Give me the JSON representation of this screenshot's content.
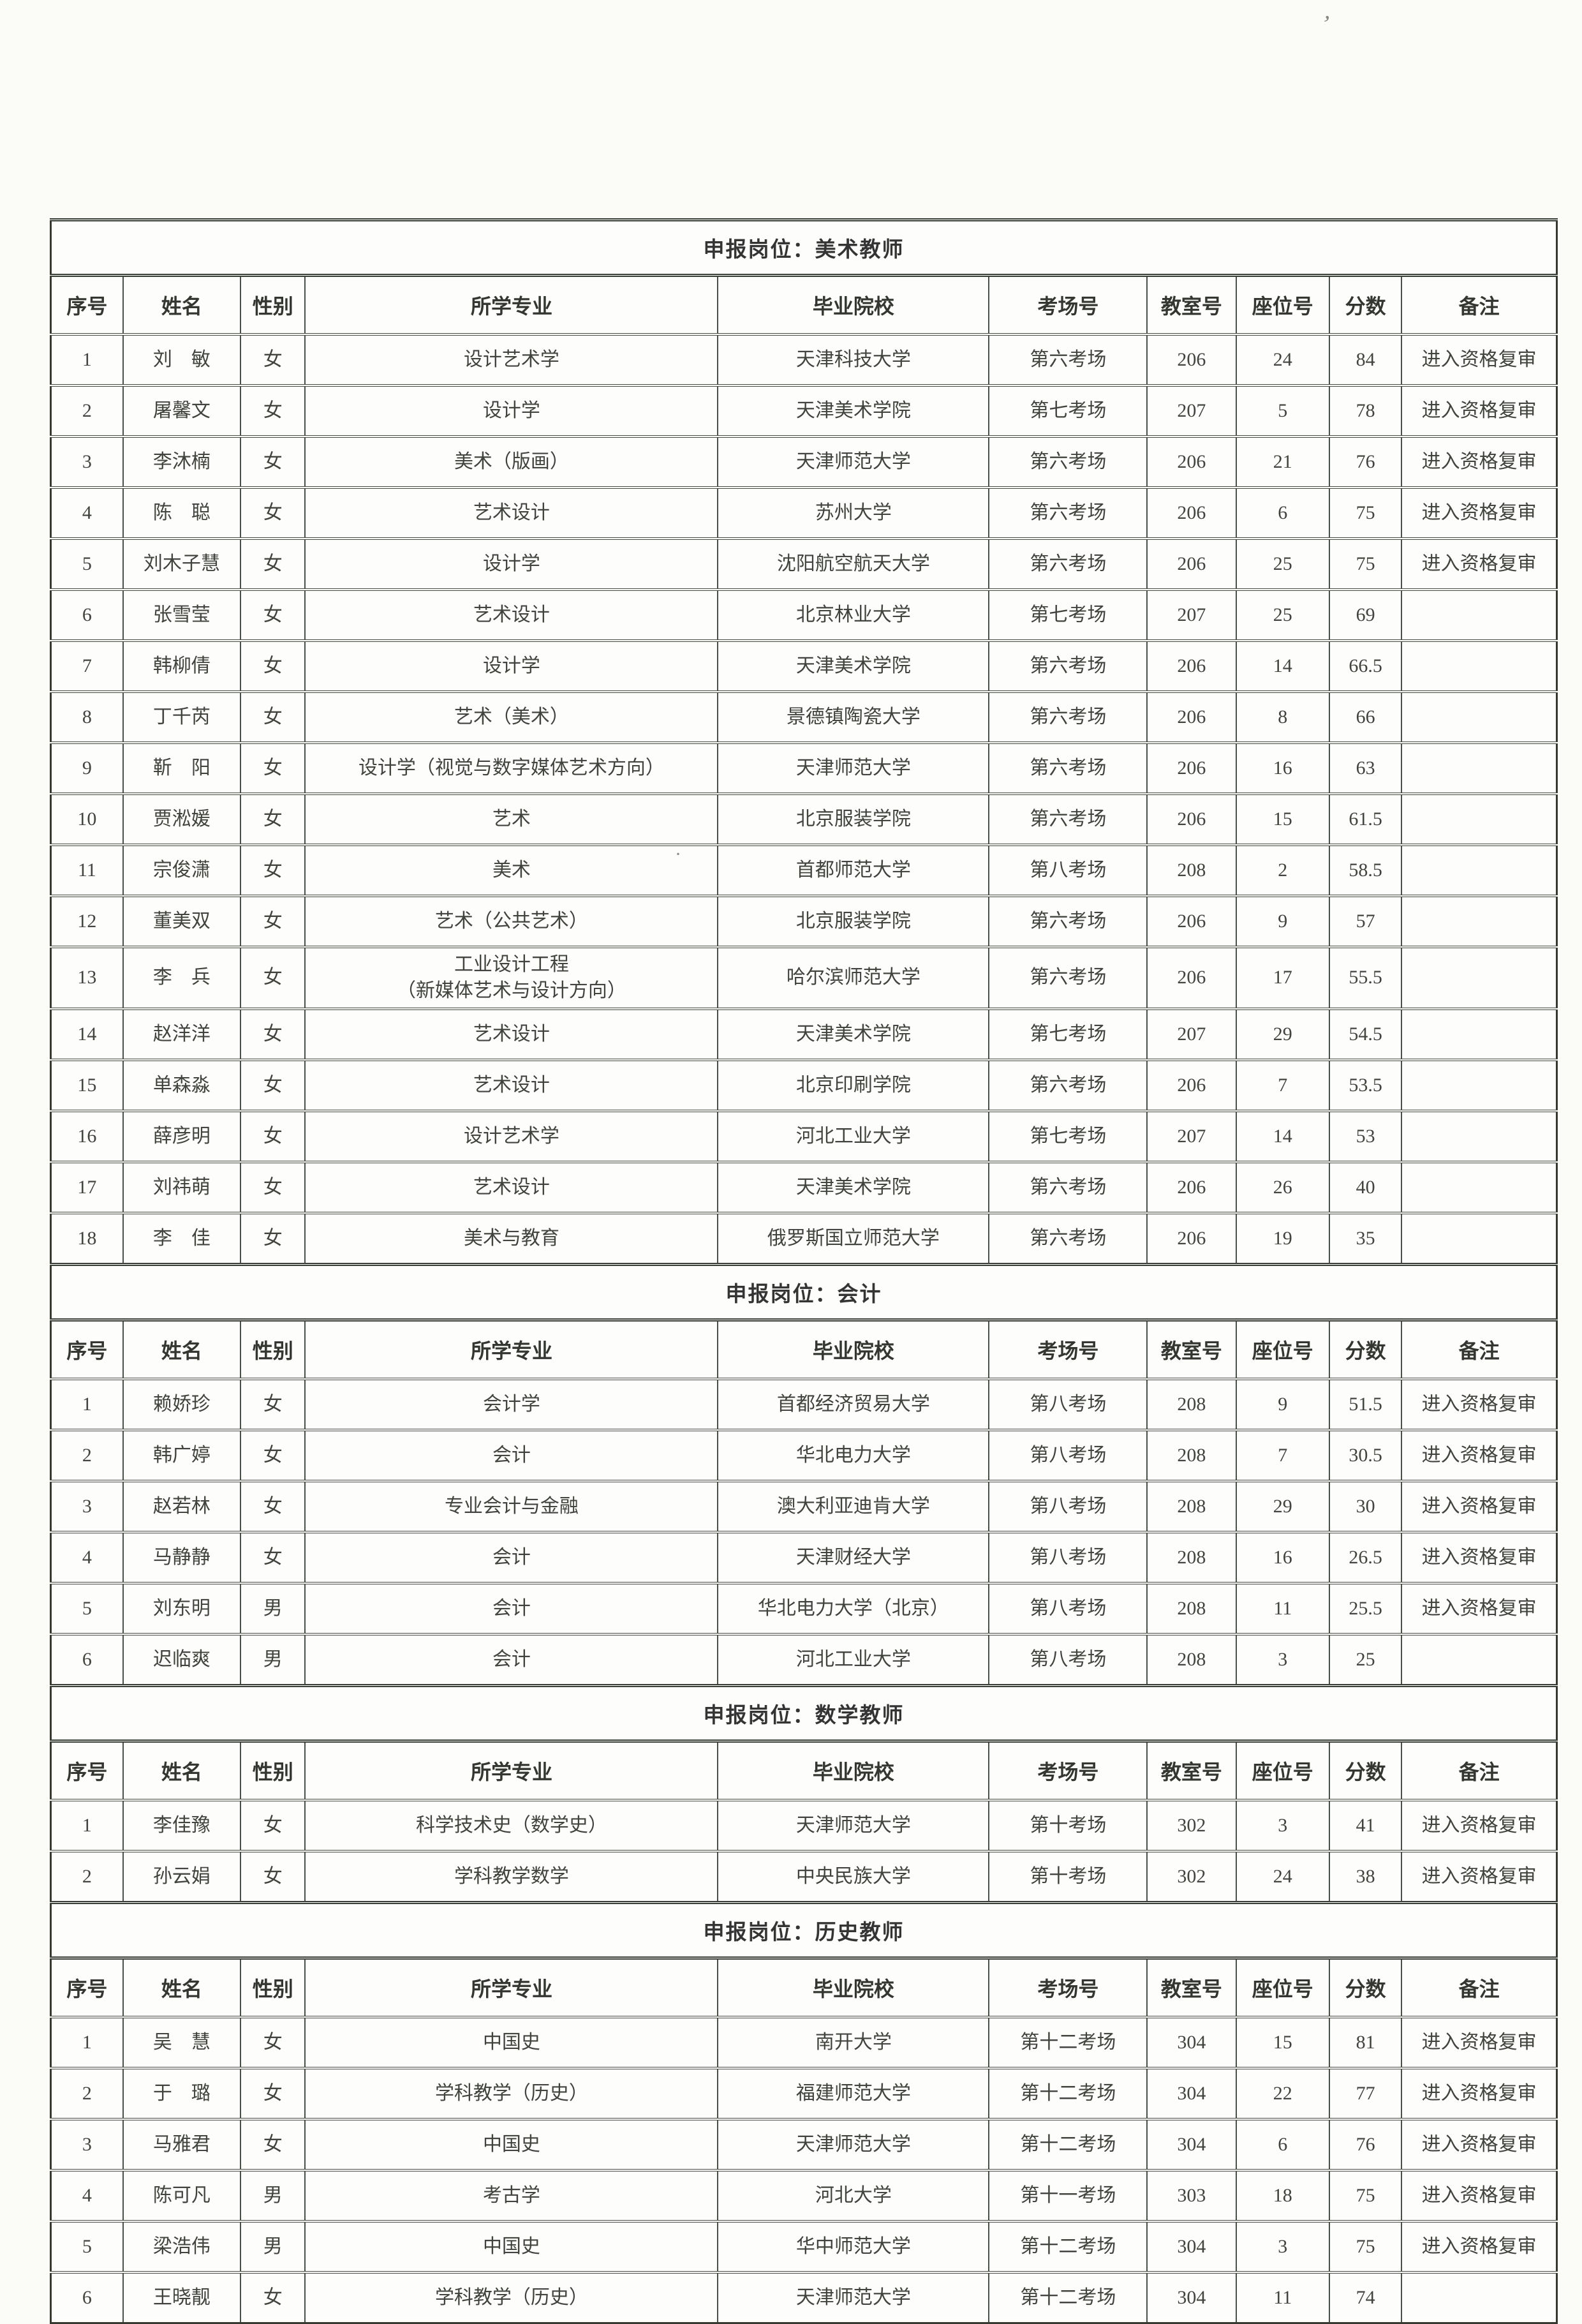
{
  "colors": {
    "paper": "#fbfbf8",
    "ink": "#3a3a3a",
    "line": "#41463f"
  },
  "scan_marks": {
    "mark1": "’",
    "mark2": "·",
    "mark3": "·"
  },
  "document": {
    "column_keys": [
      "seq",
      "name",
      "gender",
      "major",
      "school",
      "exam-room",
      "classroom",
      "seat",
      "score",
      "remark"
    ],
    "sections": [
      {
        "title": "申报岗位：美术教师",
        "headers": [
          "序号",
          "姓名",
          "性别",
          "所学专业",
          "毕业院校",
          "考场号",
          "教室号",
          "座位号",
          "分数",
          "备注"
        ],
        "rows": [
          [
            "1",
            "刘　敏",
            "女",
            "设计艺术学",
            "天津科技大学",
            "第六考场",
            "206",
            "24",
            "84",
            "进入资格复审"
          ],
          [
            "2",
            "屠馨文",
            "女",
            "设计学",
            "天津美术学院",
            "第七考场",
            "207",
            "5",
            "78",
            "进入资格复审"
          ],
          [
            "3",
            "李沐楠",
            "女",
            "美术（版画）",
            "天津师范大学",
            "第六考场",
            "206",
            "21",
            "76",
            "进入资格复审"
          ],
          [
            "4",
            "陈　聪",
            "女",
            "艺术设计",
            "苏州大学",
            "第六考场",
            "206",
            "6",
            "75",
            "进入资格复审"
          ],
          [
            "5",
            "刘木子慧",
            "女",
            "设计学",
            "沈阳航空航天大学",
            "第六考场",
            "206",
            "25",
            "75",
            "进入资格复审"
          ],
          [
            "6",
            "张雪莹",
            "女",
            "艺术设计",
            "北京林业大学",
            "第七考场",
            "207",
            "25",
            "69",
            ""
          ],
          [
            "7",
            "韩柳倩",
            "女",
            "设计学",
            "天津美术学院",
            "第六考场",
            "206",
            "14",
            "66.5",
            ""
          ],
          [
            "8",
            "丁千芮",
            "女",
            "艺术（美术）",
            "景德镇陶瓷大学",
            "第六考场",
            "206",
            "8",
            "66",
            ""
          ],
          [
            "9",
            "靳　阳",
            "女",
            "设计学（视觉与数字媒体艺术方向）",
            "天津师范大学",
            "第六考场",
            "206",
            "16",
            "63",
            ""
          ],
          [
            "10",
            "贾淞媛",
            "女",
            "艺术",
            "北京服装学院",
            "第六考场",
            "206",
            "15",
            "61.5",
            ""
          ],
          [
            "11",
            "宗俊潇",
            "女",
            "美术",
            "首都师范大学",
            "第八考场",
            "208",
            "2",
            "58.5",
            ""
          ],
          [
            "12",
            "董美双",
            "女",
            "艺术（公共艺术）",
            "北京服装学院",
            "第六考场",
            "206",
            "9",
            "57",
            ""
          ],
          [
            "13",
            "李　兵",
            "女",
            "工业设计工程\n（新媒体艺术与设计方向）",
            "哈尔滨师范大学",
            "第六考场",
            "206",
            "17",
            "55.5",
            ""
          ],
          [
            "14",
            "赵洋洋",
            "女",
            "艺术设计",
            "天津美术学院",
            "第七考场",
            "207",
            "29",
            "54.5",
            ""
          ],
          [
            "15",
            "单森淼",
            "女",
            "艺术设计",
            "北京印刷学院",
            "第六考场",
            "206",
            "7",
            "53.5",
            ""
          ],
          [
            "16",
            "薛彦明",
            "女",
            "设计艺术学",
            "河北工业大学",
            "第七考场",
            "207",
            "14",
            "53",
            ""
          ],
          [
            "17",
            "刘祎萌",
            "女",
            "艺术设计",
            "天津美术学院",
            "第六考场",
            "206",
            "26",
            "40",
            ""
          ],
          [
            "18",
            "李　佳",
            "女",
            "美术与教育",
            "俄罗斯国立师范大学",
            "第六考场",
            "206",
            "19",
            "35",
            ""
          ]
        ]
      },
      {
        "title": "申报岗位：会计",
        "headers": [
          "序号",
          "姓名",
          "性别",
          "所学专业",
          "毕业院校",
          "考场号",
          "教室号",
          "座位号",
          "分数",
          "备注"
        ],
        "rows": [
          [
            "1",
            "赖娇珍",
            "女",
            "会计学",
            "首都经济贸易大学",
            "第八考场",
            "208",
            "9",
            "51.5",
            "进入资格复审"
          ],
          [
            "2",
            "韩广婷",
            "女",
            "会计",
            "华北电力大学",
            "第八考场",
            "208",
            "7",
            "30.5",
            "进入资格复审"
          ],
          [
            "3",
            "赵若林",
            "女",
            "专业会计与金融",
            "澳大利亚迪肯大学",
            "第八考场",
            "208",
            "29",
            "30",
            "进入资格复审"
          ],
          [
            "4",
            "马静静",
            "女",
            "会计",
            "天津财经大学",
            "第八考场",
            "208",
            "16",
            "26.5",
            "进入资格复审"
          ],
          [
            "5",
            "刘东明",
            "男",
            "会计",
            "华北电力大学（北京）",
            "第八考场",
            "208",
            "11",
            "25.5",
            "进入资格复审"
          ],
          [
            "6",
            "迟临爽",
            "男",
            "会计",
            "河北工业大学",
            "第八考场",
            "208",
            "3",
            "25",
            ""
          ]
        ]
      },
      {
        "title": "申报岗位：数学教师",
        "headers": [
          "序号",
          "姓名",
          "性别",
          "所学专业",
          "毕业院校",
          "考场号",
          "教室号",
          "座位号",
          "分数",
          "备注"
        ],
        "rows": [
          [
            "1",
            "李佳豫",
            "女",
            "科学技术史（数学史）",
            "天津师范大学",
            "第十考场",
            "302",
            "3",
            "41",
            "进入资格复审"
          ],
          [
            "2",
            "孙云娟",
            "女",
            "学科教学数学",
            "中央民族大学",
            "第十考场",
            "302",
            "24",
            "38",
            "进入资格复审"
          ]
        ]
      },
      {
        "title": "申报岗位：历史教师",
        "headers": [
          "序号",
          "姓名",
          "性别",
          "所学专业",
          "毕业院校",
          "考场号",
          "教室号",
          "座位号",
          "分数",
          "备注"
        ],
        "rows": [
          [
            "1",
            "吴　慧",
            "女",
            "中国史",
            "南开大学",
            "第十二考场",
            "304",
            "15",
            "81",
            "进入资格复审"
          ],
          [
            "2",
            "于　璐",
            "女",
            "学科教学（历史）",
            "福建师范大学",
            "第十二考场",
            "304",
            "22",
            "77",
            "进入资格复审"
          ],
          [
            "3",
            "马雅君",
            "女",
            "中国史",
            "天津师范大学",
            "第十二考场",
            "304",
            "6",
            "76",
            "进入资格复审"
          ],
          [
            "4",
            "陈可凡",
            "男",
            "考古学",
            "河北大学",
            "第十一考场",
            "303",
            "18",
            "75",
            "进入资格复审"
          ],
          [
            "5",
            "梁浩伟",
            "男",
            "中国史",
            "华中师范大学",
            "第十二考场",
            "304",
            "3",
            "75",
            "进入资格复审"
          ],
          [
            "6",
            "王晓靓",
            "女",
            "学科教学（历史）",
            "天津师范大学",
            "第十二考场",
            "304",
            "11",
            "74",
            ""
          ]
        ]
      }
    ]
  }
}
